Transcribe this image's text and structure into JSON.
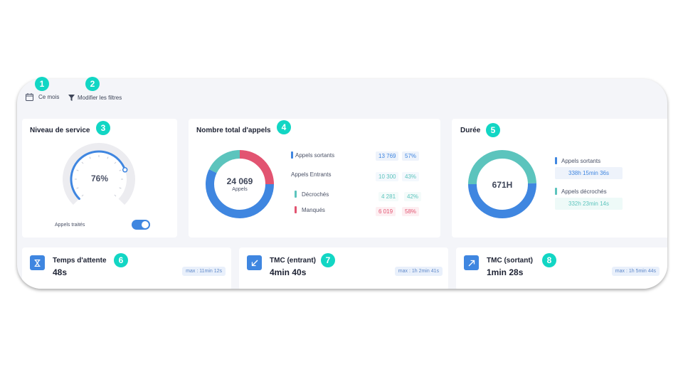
{
  "toolbar": {
    "period_label": "Ce mois",
    "filters_label": "Modifier les filtres"
  },
  "badges": [
    "1",
    "2",
    "3",
    "4",
    "5",
    "6",
    "7",
    "8"
  ],
  "service_level": {
    "title": "Niveau de service",
    "value": "76%",
    "percent": 76,
    "toggle_label": "Appels traités",
    "toggle_on": true
  },
  "total_calls": {
    "title": "Nombre total d'appels",
    "total": "24 069",
    "total_label": "Appels",
    "rows": [
      {
        "label": "Appels sortants",
        "count": "13 769",
        "pct": "57%"
      },
      {
        "label": "Appels Entrants",
        "count": "10 300",
        "pct": "43%"
      },
      {
        "label": "Décrochés",
        "count": "4 281",
        "pct": "42%"
      },
      {
        "label": "Manqués",
        "count": "6 019",
        "pct": "58%"
      }
    ],
    "colors": {
      "sortants": "#3f86e0",
      "decroches": "#5cc4bd",
      "manques": "#e25471"
    }
  },
  "chart_data": [
    {
      "type": "pie",
      "title": "Nombre total d'appels",
      "categories": [
        "Appels sortants",
        "Décrochés",
        "Manqués"
      ],
      "values": [
        13769,
        4281,
        6019
      ]
    },
    {
      "type": "pie",
      "title": "Durée",
      "categories": [
        "Appels sortants",
        "Appels décrochés"
      ],
      "values": [
        338.25,
        332.38
      ]
    }
  ],
  "duration": {
    "title": "Durée",
    "total": "671H",
    "rows": [
      {
        "label": "Appels sortants",
        "value": "338h 15min 36s"
      },
      {
        "label": "Appels décrochés",
        "value": "332h 23min 14s"
      }
    ]
  },
  "wait_time": {
    "title": "Temps d'attente",
    "value": "48s",
    "max": "max : 11min 12s",
    "icon": "hourglass-icon"
  },
  "tmc_in": {
    "title": "TMC (entrant)",
    "value": "4min 40s",
    "max": "max : 1h 2min 41s",
    "icon": "arrow-down-left-icon"
  },
  "tmc_out": {
    "title": "TMC (sortant)",
    "value": "1min 28s",
    "max": "max : 1h 5min 44s",
    "icon": "arrow-up-right-icon"
  }
}
